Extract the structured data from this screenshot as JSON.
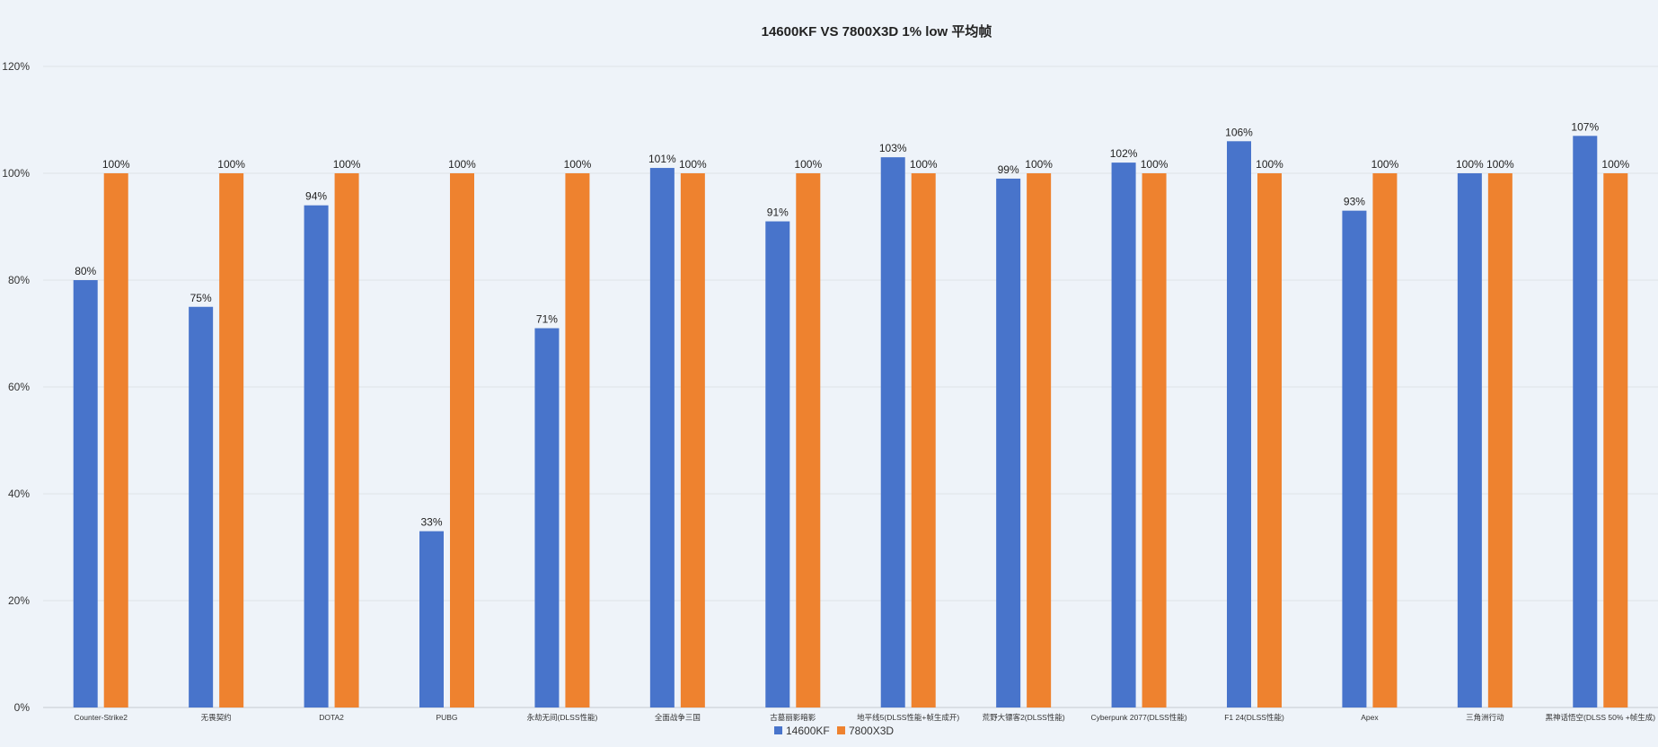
{
  "chart_data": {
    "type": "bar",
    "title": "14600KF  VS  7800X3D   1% low 平均帧",
    "xlabel": "",
    "ylabel": "",
    "ylim": [
      0,
      120
    ],
    "yticks": [
      0,
      20,
      40,
      60,
      80,
      100,
      120
    ],
    "ytick_labels": [
      "0%",
      "20%",
      "40%",
      "60%",
      "80%",
      "100%",
      "120%"
    ],
    "value_suffix": "%",
    "grid": true,
    "legend_position": "bottom-center",
    "categories": [
      "Counter-Strike2",
      "无畏契约",
      "DOTA2",
      "PUBG",
      "永劫无间(DLSS性能)",
      "全面战争三国",
      "古墓丽影暗影",
      "地平线5(DLSS性能+帧生成开)",
      "荒野大镖客2(DLSS性能)",
      "Cyberpunk 2077(DLSS性能)",
      "F1 24(DLSS性能)",
      "Apex",
      "三角洲行动",
      "黑神话悟空(DLSS 50% +帧生成)"
    ],
    "series": [
      {
        "name": "14600KF",
        "color": "#4874cb",
        "values": [
          80,
          75,
          94,
          33,
          71,
          101,
          91,
          103,
          99,
          102,
          106,
          93,
          100,
          107
        ]
      },
      {
        "name": "7800X3D",
        "color": "#ee822f",
        "values": [
          100,
          100,
          100,
          100,
          100,
          100,
          100,
          100,
          100,
          100,
          100,
          100,
          100,
          100
        ]
      }
    ]
  }
}
